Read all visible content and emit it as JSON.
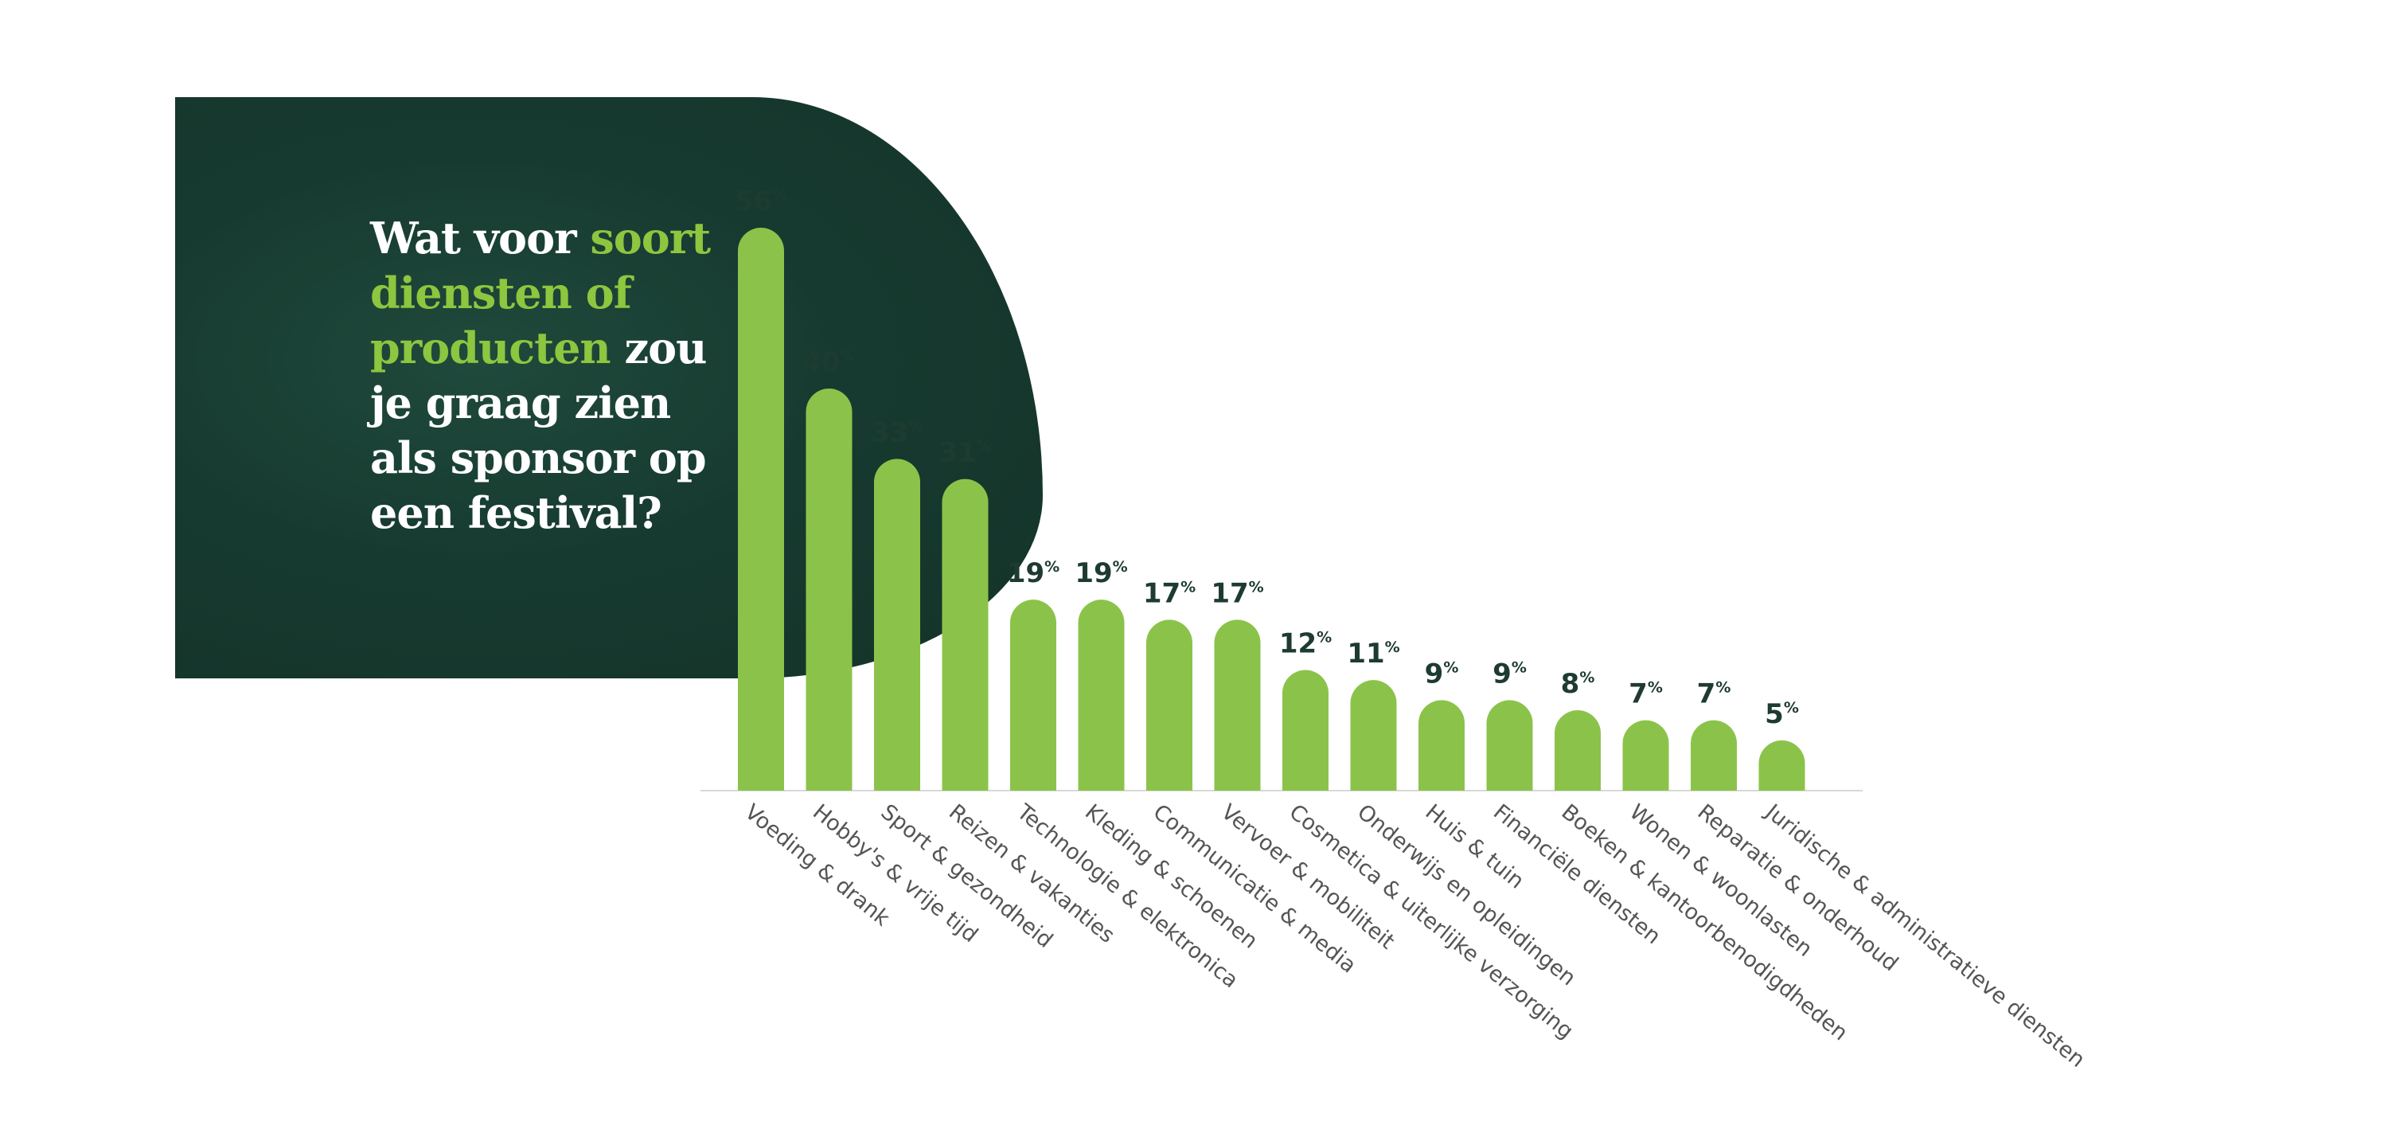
{
  "title": {
    "part1": "Wat voor ",
    "highlight": "soort diensten of producten",
    "part2": " zou je graag zien als sponsor op een festival?"
  },
  "colors": {
    "panel": "#173a30",
    "bar": "#8bc34a",
    "highlight": "#8dc63f",
    "value_text": "#1e3b31",
    "label_text": "#555555"
  },
  "chart_data": {
    "type": "bar",
    "title": "Wat voor soort diensten of producten zou je graag zien als sponsor op een festival?",
    "categories": [
      "Voeding & drank",
      "Hobby's & vrije tijd",
      "Sport & gezondheid",
      "Reizen & vakanties",
      "Technologie & elektronica",
      "Kleding & schoenen",
      "Communicatie & media",
      "Vervoer & mobiliteit",
      "Cosmetica & uiterlijke verzorging",
      "Onderwijs en opleidingen",
      "Huis & tuin",
      "Financiële diensten",
      "Boeken & kantoorbenodigdheden",
      "Wonen & woonlasten",
      "Reparatie & onderhoud",
      "Juridische & administratieve diensten"
    ],
    "values": [
      56,
      40,
      33,
      31,
      19,
      19,
      17,
      17,
      12,
      11,
      9,
      9,
      8,
      7,
      7,
      5
    ],
    "unit": "%",
    "ylim": [
      0,
      56
    ],
    "grid": false,
    "legend": "none"
  }
}
